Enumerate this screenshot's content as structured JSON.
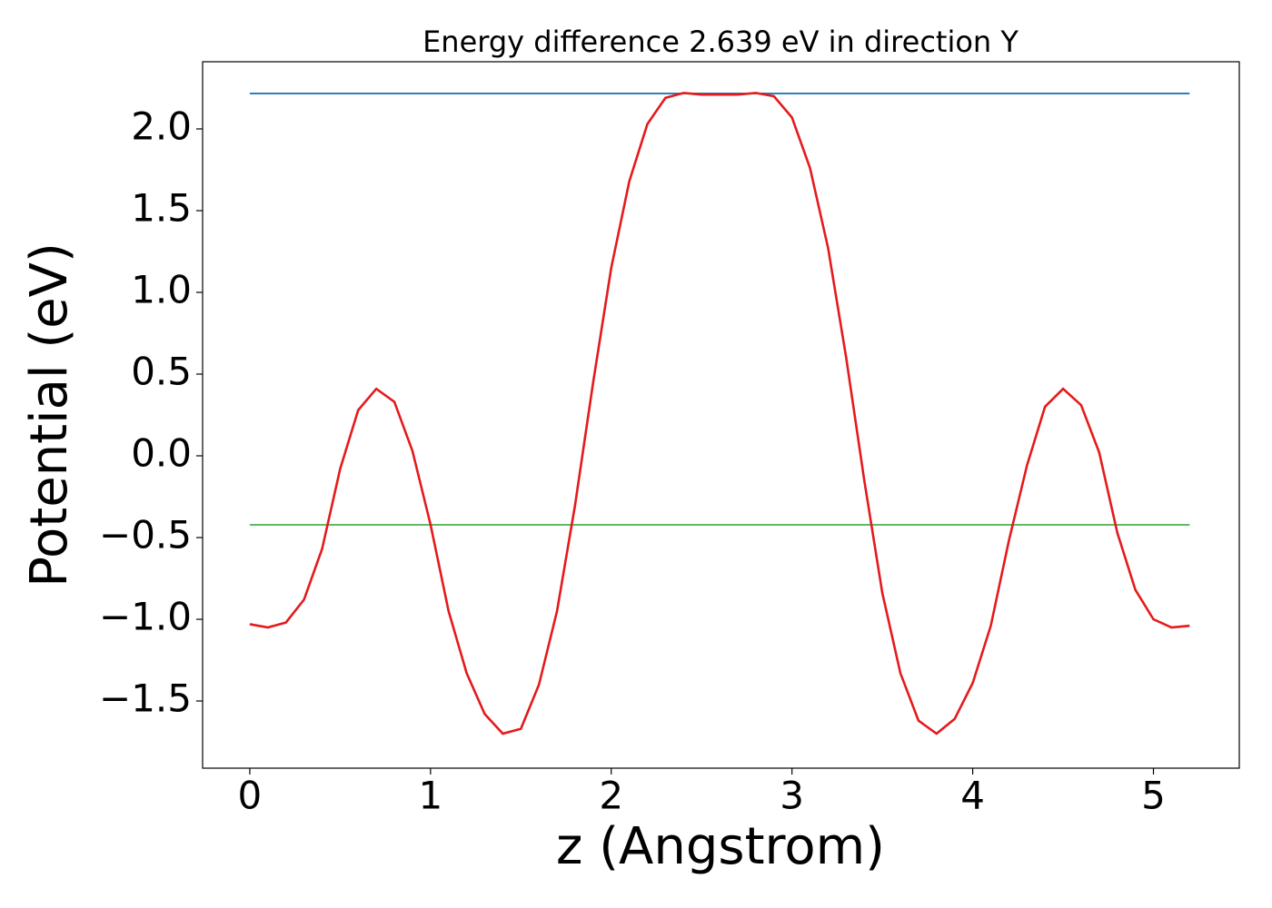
{
  "chart_data": {
    "type": "line",
    "title": "Energy difference 2.639 eV in direction Y",
    "xlabel": "z (Angstrom)",
    "ylabel": "Potential (eV)",
    "xlim": [
      -0.261,
      5.475
    ],
    "ylim": [
      -1.911,
      2.411
    ],
    "xticks": [
      0,
      1,
      2,
      3,
      4,
      5
    ],
    "yticks": [
      {
        "value": -1.5,
        "label": "−1.5"
      },
      {
        "value": -1.0,
        "label": "−1.0"
      },
      {
        "value": -0.5,
        "label": "−0.5"
      },
      {
        "value": 0,
        "label": "0.0"
      },
      0.5,
      {
        "value": 1.0,
        "label": "1.0"
      },
      1.5,
      {
        "value": 2.0,
        "label": "2.0"
      }
    ],
    "series": [
      {
        "color": "#e41a1c",
        "x": [
          0,
          0.1,
          0.2,
          0.3,
          0.4,
          0.5,
          0.6,
          0.7,
          0.8,
          0.9,
          1.0,
          1.1,
          1.2,
          1.3,
          1.4,
          1.5,
          1.6,
          1.7,
          1.8,
          1.9,
          2.0,
          2.1,
          2.2,
          2.3,
          2.4,
          2.5,
          2.6,
          2.7,
          2.8,
          2.9,
          3.0,
          3.1,
          3.2,
          3.3,
          3.4,
          3.5,
          3.6,
          3.7,
          3.8,
          3.9,
          4.0,
          4.1,
          4.2,
          4.3,
          4.4,
          4.5,
          4.6,
          4.7,
          4.8,
          4.9,
          5.0,
          5.1,
          5.2
        ],
        "values": [
          -1.03,
          -1.05,
          -1.02,
          -0.88,
          -0.57,
          -0.08,
          0.28,
          0.41,
          0.33,
          0.03,
          -0.42,
          -0.95,
          -1.33,
          -1.58,
          -1.7,
          -1.67,
          -1.4,
          -0.95,
          -0.3,
          0.45,
          1.15,
          1.68,
          2.03,
          2.19,
          2.22,
          2.21,
          2.21,
          2.21,
          2.22,
          2.2,
          2.07,
          1.76,
          1.27,
          0.6,
          -0.15,
          -0.84,
          -1.33,
          -1.62,
          -1.7,
          -1.61,
          -1.39,
          -1.04,
          -0.52,
          -0.06,
          0.3,
          0.41,
          0.31,
          0.02,
          -0.47,
          -0.82,
          -1.0,
          -1.05,
          -1.04
        ]
      },
      {
        "color": "#1f77b4",
        "x": [
          0,
          5.2
        ],
        "values": [
          2.217,
          2.217
        ]
      },
      {
        "color": "#4daf4a",
        "x": [
          0,
          5.2
        ],
        "values": [
          -0.422,
          -0.422
        ]
      }
    ]
  }
}
